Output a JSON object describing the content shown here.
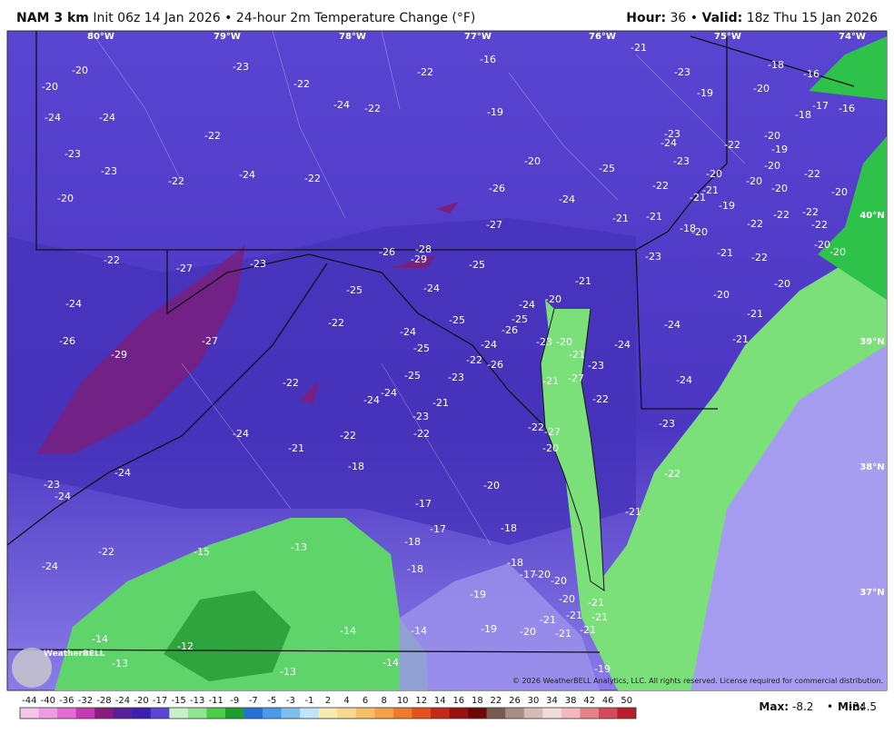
{
  "header": {
    "model": "NAM 3 km",
    "description": "Init 06z 14 Jan 2026 • 24-hour 2m Temperature Change (°F)",
    "hour_label": "Hour:",
    "hour": "36",
    "valid_label": "Valid:",
    "valid": "18z Thu 15 Jan 2026"
  },
  "map": {
    "longitude_labels": [
      "80°W",
      "79°W",
      "78°W",
      "77°W",
      "76°W",
      "75°W",
      "74°W"
    ],
    "latitude_labels": [
      "40°N",
      "39°N",
      "38°N",
      "37°N"
    ],
    "labels": [
      -20,
      -20,
      -23,
      -22,
      -16,
      -21,
      -18,
      -16,
      -23,
      -22,
      -24,
      -24,
      -24,
      -22,
      -19,
      -19,
      -20,
      -18,
      -17,
      -16,
      -22,
      -23,
      -23,
      -24,
      -22,
      -22,
      -20,
      -20,
      -25,
      -23,
      -24,
      -22,
      -20,
      -19,
      -20,
      -22,
      -23,
      -20,
      -20,
      -20,
      -22,
      -20,
      -22,
      -21,
      -21,
      -19,
      -26,
      -24,
      -21,
      -21,
      -18,
      -20,
      -22,
      -22,
      -22,
      -20,
      -20,
      -27,
      -22,
      -27,
      -23,
      -26,
      -28,
      -29,
      -25,
      -23,
      -21,
      -22,
      -24,
      -25,
      -24,
      -24,
      -20,
      -21,
      -20,
      -20,
      -22,
      -25,
      -25,
      -26,
      -24,
      -24,
      -21,
      -26,
      -27,
      -24,
      -23,
      -20,
      -24,
      -21,
      -29,
      -25,
      -22,
      -26,
      -21,
      -23,
      -24,
      -25,
      -23,
      -22,
      -21,
      -27,
      -24,
      -24,
      -21,
      -22,
      -23,
      -22,
      -22,
      -27,
      -24,
      -22,
      -23,
      -20,
      -21,
      -18,
      -24,
      -22,
      -23,
      -24,
      -20,
      -17,
      -17,
      -18,
      -21,
      -22,
      -15,
      -13,
      -18,
      -24,
      -18,
      -18,
      -17,
      -20,
      -20,
      -19,
      -20,
      -21,
      -21,
      -21,
      -14,
      -14,
      -14,
      -19,
      -20,
      -21,
      -21,
      -21,
      -12,
      -13,
      -14,
      -13,
      -19
    ],
    "logo": "WeatherBELL",
    "copyright": "© 2026 WeatherBELL Analytics, LLC. All rights reserved. License required for commercial distribution."
  },
  "colorbar": {
    "ticks": [
      -44,
      -40,
      -36,
      -32,
      -28,
      -24,
      -20,
      -17,
      -15,
      -13,
      -11,
      -9,
      -7,
      -5,
      -3,
      -1,
      2,
      4,
      6,
      8,
      10,
      12,
      14,
      16,
      18,
      22,
      26,
      30,
      34,
      38,
      42,
      46,
      50
    ],
    "colors": [
      "#f4c6e8",
      "#ee9ee0",
      "#e46ad4",
      "#c43ab4",
      "#8a1c7e",
      "#5a1f9a",
      "#3a1fb0",
      "#5b45d6",
      "#c8f0c8",
      "#8ee68e",
      "#4ccc4c",
      "#1e9e2e",
      "#2a6ed8",
      "#4a9ae8",
      "#7cc0f0",
      "#bfe4fb",
      "#f8e9b0",
      "#f8d890",
      "#f6c06a",
      "#f3a14a",
      "#ee7a2c",
      "#e45020",
      "#c62818",
      "#9a1010",
      "#6e0808",
      "#7a5a50",
      "#a88c84",
      "#d4bcb6",
      "#f0dcd8",
      "#f4b8c0",
      "#e8808c",
      "#d44a5a",
      "#b81e2a"
    ]
  },
  "stats": {
    "max_label": "Max:",
    "max": -8.2,
    "min_label": "Min:",
    "min": -34.5
  }
}
